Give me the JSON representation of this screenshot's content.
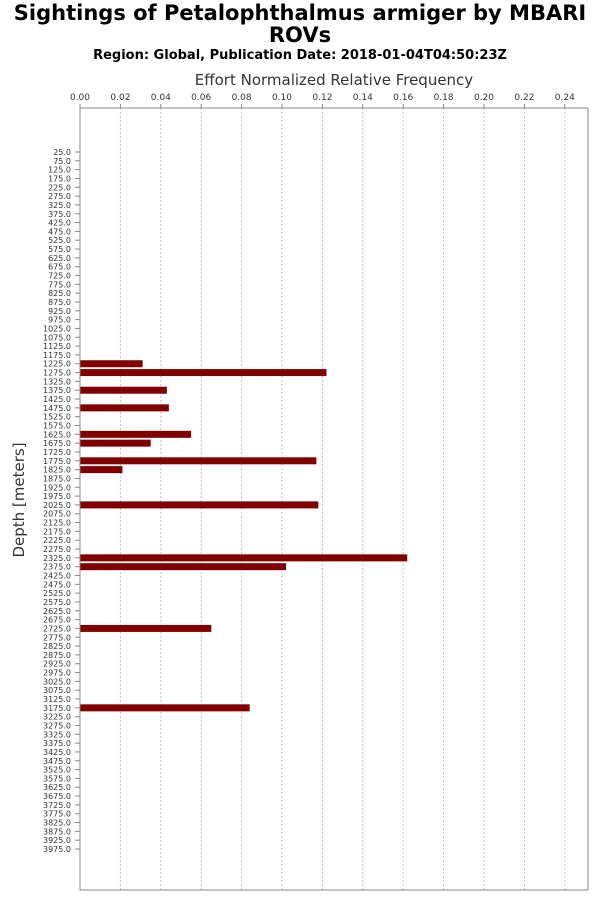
{
  "chart_data": {
    "type": "bar",
    "orientation": "horizontal",
    "title": "Sightings of Petalophthalmus armiger by MBARI ROVs",
    "subtitle": "Region: Global, Publication Date: 2018-01-04T04:50:23Z",
    "xlabel": "Effort Normalized Relative Frequency",
    "ylabel": "Depth [meters]",
    "xlim": [
      0,
      0.25
    ],
    "x_ticks": [
      "0.00",
      "0.02",
      "0.04",
      "0.06",
      "0.08",
      "0.10",
      "0.12",
      "0.14",
      "0.16",
      "0.18",
      "0.20",
      "0.22",
      "0.24"
    ],
    "x_axis_position": "top",
    "grid": "vertical dashed",
    "bar_color": "#800000",
    "categories": [
      "25.0",
      "75.0",
      "125.0",
      "175.0",
      "225.0",
      "275.0",
      "325.0",
      "375.0",
      "425.0",
      "475.0",
      "525.0",
      "575.0",
      "625.0",
      "675.0",
      "725.0",
      "775.0",
      "825.0",
      "875.0",
      "925.0",
      "975.0",
      "1025.0",
      "1075.0",
      "1125.0",
      "1175.0",
      "1225.0",
      "1275.0",
      "1325.0",
      "1375.0",
      "1425.0",
      "1475.0",
      "1525.0",
      "1575.0",
      "1625.0",
      "1675.0",
      "1725.0",
      "1775.0",
      "1825.0",
      "1875.0",
      "1925.0",
      "1975.0",
      "2025.0",
      "2075.0",
      "2125.0",
      "2175.0",
      "2225.0",
      "2275.0",
      "2325.0",
      "2375.0",
      "2425.0",
      "2475.0",
      "2525.0",
      "2575.0",
      "2625.0",
      "2675.0",
      "2725.0",
      "2775.0",
      "2825.0",
      "2875.0",
      "2925.0",
      "2975.0",
      "3025.0",
      "3075.0",
      "3125.0",
      "3175.0",
      "3225.0",
      "3275.0",
      "3325.0",
      "3375.0",
      "3425.0",
      "3475.0",
      "3525.0",
      "3575.0",
      "3625.0",
      "3675.0",
      "3725.0",
      "3775.0",
      "3825.0",
      "3875.0",
      "3925.0",
      "3975.0"
    ],
    "values": [
      0,
      0,
      0,
      0,
      0,
      0,
      0,
      0,
      0,
      0,
      0,
      0,
      0,
      0,
      0,
      0,
      0,
      0,
      0,
      0,
      0,
      0,
      0,
      0,
      0.031,
      0.122,
      0,
      0.043,
      0,
      0.044,
      0,
      0,
      0.055,
      0.035,
      0,
      0.117,
      0.021,
      0,
      0,
      0,
      0.118,
      0,
      0,
      0,
      0,
      0,
      0.162,
      0.102,
      0,
      0,
      0,
      0,
      0,
      0,
      0.065,
      0,
      0,
      0,
      0,
      0,
      0,
      0,
      0,
      0.084,
      0,
      0,
      0,
      0,
      0,
      0,
      0,
      0,
      0,
      0,
      0,
      0,
      0,
      0,
      0,
      0
    ]
  }
}
